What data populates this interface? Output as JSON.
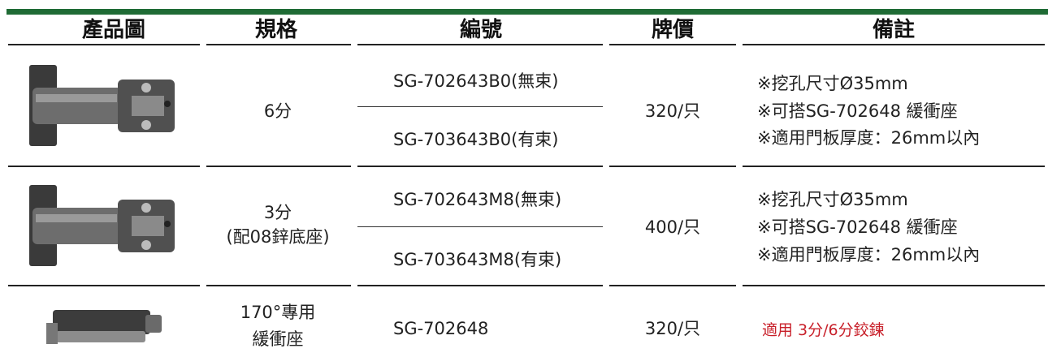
{
  "table": {
    "headers": [
      "產品圖",
      "規格",
      "編號",
      "牌價",
      "備註"
    ],
    "rows": [
      {
        "spec": [
          "6分"
        ],
        "codes": [
          "SG-702643B0(無束)",
          "SG-703643B0(有束)"
        ],
        "price": "320/只",
        "notes": [
          "※挖孔尺寸Ø35mm",
          "※可搭SG-702648 緩衝座",
          "※適用門板厚度：26mm以內"
        ]
      },
      {
        "spec": [
          "3分",
          "(配08鋅底座)"
        ],
        "codes": [
          "SG-702643M8(無束)",
          "SG-703643M8(有束)"
        ],
        "price": "400/只",
        "notes": [
          "※挖孔尺寸Ø35mm",
          "※可搭SG-702648 緩衝座",
          "※適用門板厚度：26mm以內"
        ]
      },
      {
        "spec": [
          "170°專用",
          "緩衝座"
        ],
        "codes": [
          "SG-702648"
        ],
        "price": "320/只",
        "notes": [
          "適用 3分/6分鉸鍊"
        ]
      }
    ]
  }
}
